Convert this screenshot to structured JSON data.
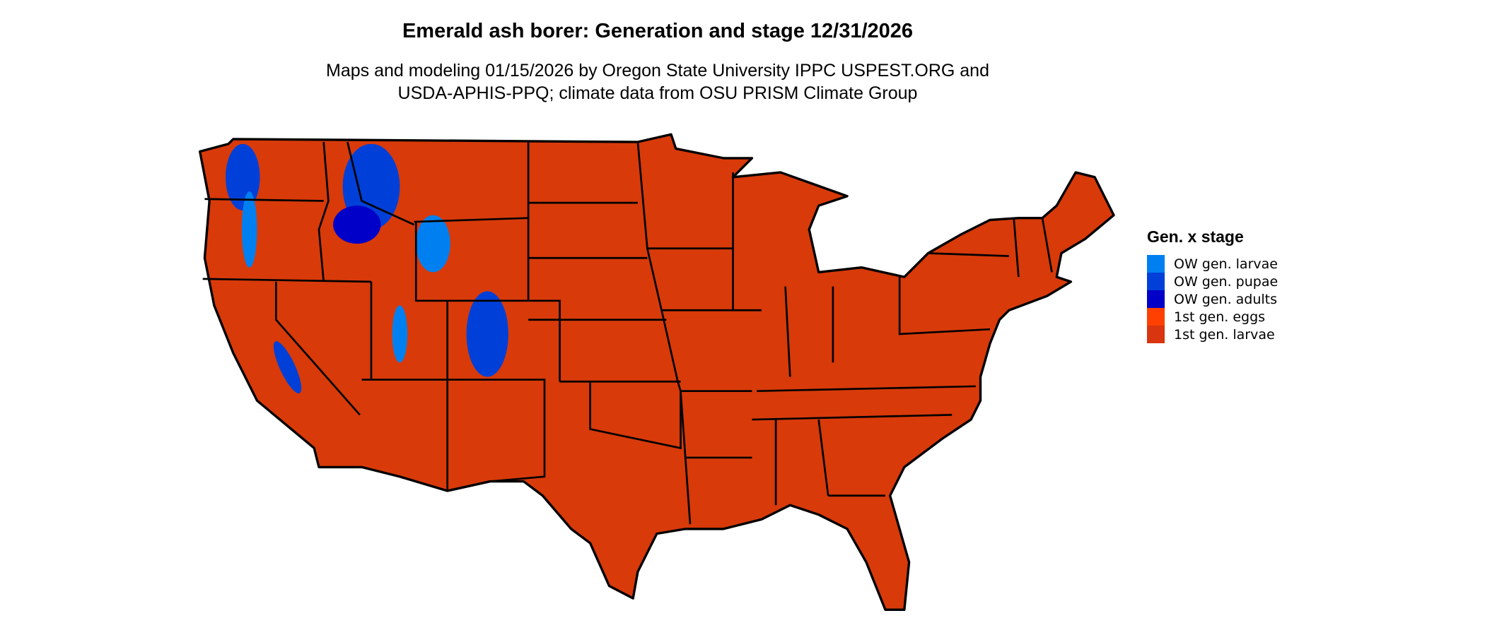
{
  "title": "Emerald ash borer: Generation and stage 12/31/2026",
  "subtitle_line1": "Maps and modeling 01/15/2026 by Oregon State University IPPC USPEST.ORG and",
  "subtitle_line2": "USDA-APHIS-PPQ; climate data from OSU PRISM Climate Group",
  "map": {
    "region": "Conterminous United States",
    "fill_color": "#d83a0a",
    "border_color": "#000000"
  },
  "legend": {
    "title": "Gen. x stage",
    "items": [
      {
        "label": "OW gen. larvae",
        "color": "#0080f0"
      },
      {
        "label": "OW gen. pupae",
        "color": "#0040d8"
      },
      {
        "label": "OW gen. adults",
        "color": "#0000c8"
      },
      {
        "label": "1st gen. eggs",
        "color": "#ff4000"
      },
      {
        "label": "1st gen. larvae",
        "color": "#d83510"
      }
    ]
  }
}
